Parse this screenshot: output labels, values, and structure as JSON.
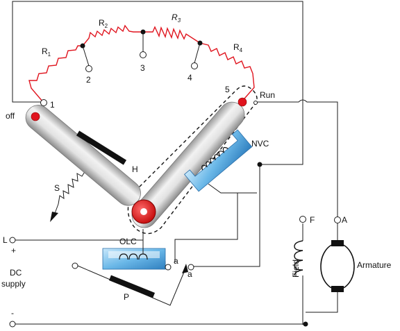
{
  "resistors": [
    {
      "main": "R",
      "sub": "1"
    },
    {
      "main": "R",
      "sub": "2"
    },
    {
      "main": "R",
      "sub": "3"
    },
    {
      "main": "R",
      "sub": "4"
    }
  ],
  "studs": [
    "1",
    "2",
    "3",
    "4",
    "5"
  ],
  "labels": {
    "off": "off",
    "run": "Run",
    "handle": "H",
    "spring": "S",
    "nvc": "NVC",
    "olc": "OLC",
    "line": "L",
    "plus": "+",
    "minus": "-",
    "supply_line1": "DC",
    "supply_line2": "supply",
    "pressure": "P",
    "contact_a1": "a",
    "contact_a2": "a",
    "field_terminal": "F",
    "field": "Field",
    "armature_terminal": "A",
    "armature": "Armature"
  },
  "colors": {
    "resistor": "#e0141e",
    "contact": "#e0141e",
    "arm": "#d8d8d8",
    "coil_frame": "#5aa8de"
  }
}
